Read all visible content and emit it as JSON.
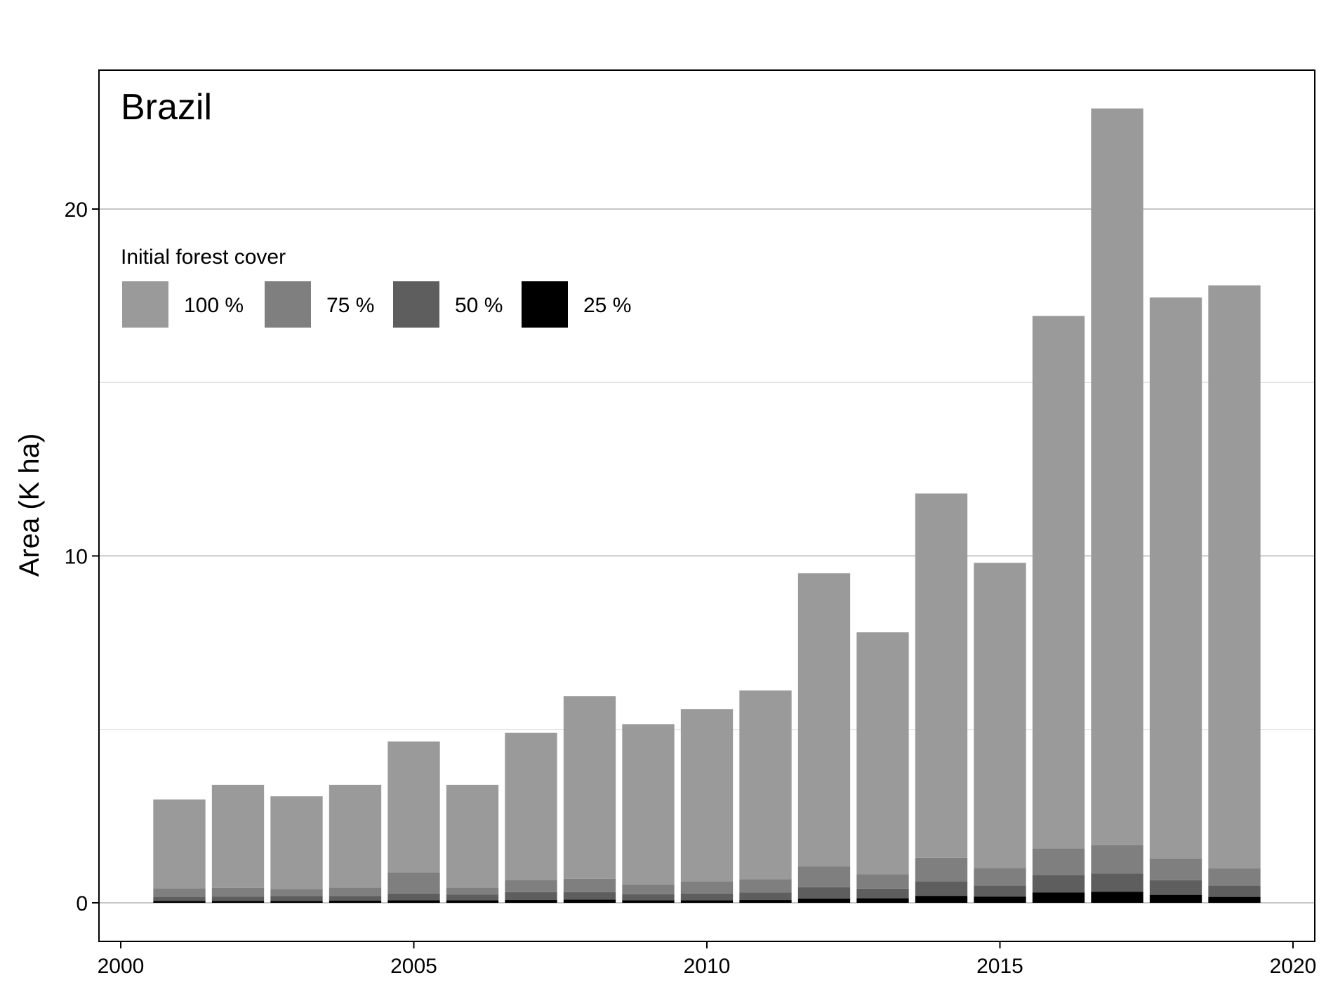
{
  "chart_data": {
    "type": "bar",
    "stacked": true,
    "title": "Brazil",
    "xlabel": "",
    "ylabel": "Area (K ha)",
    "xlim": [
      2000,
      2020
    ],
    "ylim": [
      -1.1,
      23.5
    ],
    "x_ticks": [
      2000,
      2005,
      2010,
      2015,
      2020
    ],
    "y_ticks": [
      0,
      10,
      20
    ],
    "y_minor_gridlines": [
      5,
      15
    ],
    "grid": true,
    "legend": {
      "title": "Initial forest cover",
      "placement": "top-left",
      "entries": [
        "100 %",
        "75 %",
        "50 %",
        "25 %"
      ]
    },
    "colors": {
      "100 %": "#9a9a9a",
      "75 %": "#7f7f7f",
      "50 %": "#5e5e5e",
      "25 %": "#000000"
    },
    "x": [
      2001,
      2002,
      2003,
      2004,
      2005,
      2006,
      2007,
      2008,
      2009,
      2010,
      2011,
      2012,
      2013,
      2014,
      2015,
      2016,
      2017,
      2018,
      2019
    ],
    "series": [
      {
        "name": "25 %",
        "values": [
          0.05,
          0.05,
          0.05,
          0.06,
          0.07,
          0.07,
          0.08,
          0.09,
          0.07,
          0.07,
          0.08,
          0.12,
          0.13,
          0.2,
          0.18,
          0.3,
          0.32,
          0.23,
          0.17
        ]
      },
      {
        "name": "50 %",
        "values": [
          0.12,
          0.13,
          0.15,
          0.14,
          0.2,
          0.17,
          0.23,
          0.22,
          0.18,
          0.2,
          0.22,
          0.33,
          0.28,
          0.42,
          0.32,
          0.5,
          0.52,
          0.42,
          0.33
        ]
      },
      {
        "name": "75 %",
        "values": [
          0.25,
          0.25,
          0.2,
          0.24,
          0.6,
          0.2,
          0.35,
          0.38,
          0.28,
          0.35,
          0.38,
          0.6,
          0.41,
          0.68,
          0.5,
          0.77,
          0.82,
          0.63,
          0.49
        ]
      },
      {
        "name": "100 %",
        "values": [
          2.56,
          2.97,
          2.67,
          2.96,
          3.78,
          2.96,
          4.24,
          5.27,
          4.62,
          4.96,
          5.44,
          8.45,
          6.98,
          10.5,
          8.8,
          15.35,
          21.24,
          16.17,
          16.81
        ]
      }
    ]
  }
}
